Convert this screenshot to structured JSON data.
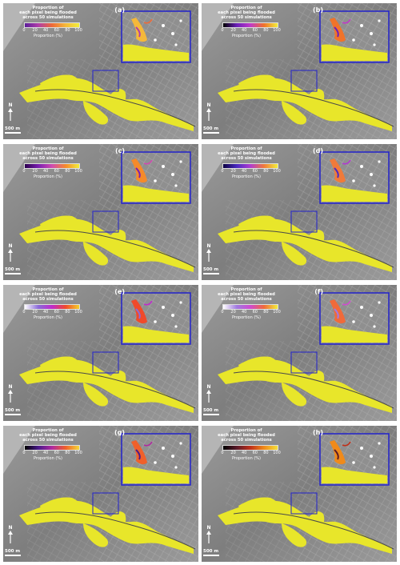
{
  "legend": {
    "title_line1": "Proportion of",
    "title_line2": "each pixel being flooded",
    "title_line3": "across 50 simulations",
    "ticks": [
      "0",
      "20",
      "40",
      "60",
      "80",
      "100"
    ],
    "axis_label": "Proportion (%)"
  },
  "north_label": "N",
  "scale_label": "500 m",
  "colors": {
    "flood": "#e8e62a",
    "inset_frame": "#2222cc",
    "hillshade": "#8c8c8c"
  },
  "panels": [
    {
      "letter": "(a)",
      "colormap": [
        "#5b1e9a",
        "#b03fa8",
        "#ee6a38",
        "#f5b83a",
        "#f2ee3a"
      ]
    },
    {
      "letter": "(b)",
      "colormap": [
        "#000000",
        "#6b1fb8",
        "#c03ac8",
        "#f0732a",
        "#f2ee3a"
      ]
    },
    {
      "letter": "(c)",
      "colormap": [
        "#2a004d",
        "#7a1fb0",
        "#d04ab0",
        "#f58a2a",
        "#f2ee3a"
      ]
    },
    {
      "letter": "(d)",
      "colormap": [
        "#0a0040",
        "#4a2ac0",
        "#b03ad0",
        "#f07a3a",
        "#f2ee3a"
      ]
    },
    {
      "letter": "(e)",
      "colormap": [
        "#ffffff",
        "#8a6ad8",
        "#c02acc",
        "#f04a2a",
        "#f5d02a"
      ]
    },
    {
      "letter": "(f)",
      "colormap": [
        "#ffffff",
        "#a07ae0",
        "#d04ad0",
        "#f06a3a",
        "#f2ee3a"
      ]
    },
    {
      "letter": "(g)",
      "colormap": [
        "#000000",
        "#4a1a8a",
        "#b02aa0",
        "#f0602a",
        "#f5d83a"
      ]
    },
    {
      "letter": "(h)",
      "colormap": [
        "#000000",
        "#5a1a2a",
        "#c0301a",
        "#f08a1a",
        "#f5e03a"
      ]
    }
  ]
}
